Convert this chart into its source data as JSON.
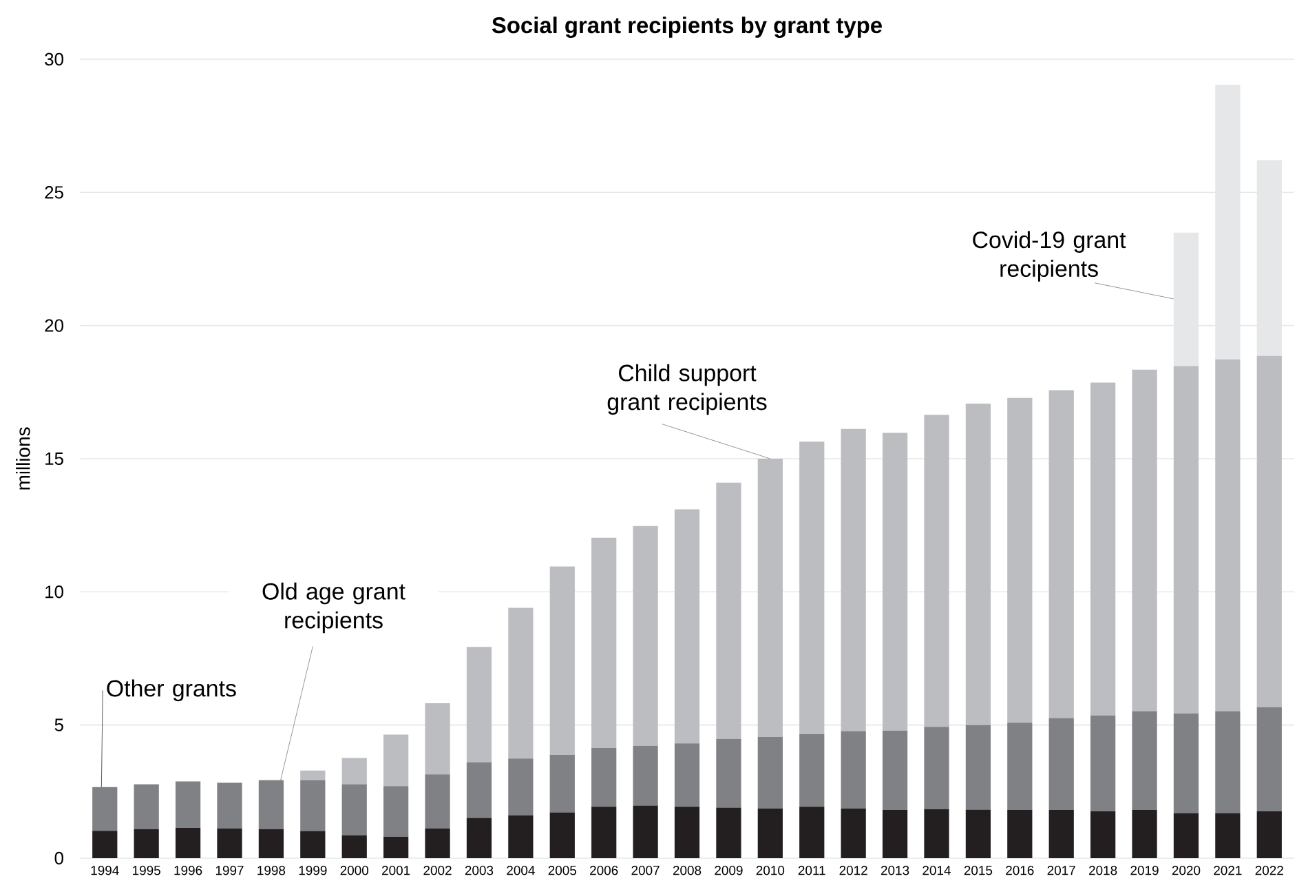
{
  "chart_data": {
    "type": "bar",
    "title": "Social grant recipients by grant type",
    "ylabel": "millions",
    "stacked": true,
    "grid": "y",
    "ylim": [
      0,
      30
    ],
    "yticks": [
      0,
      5,
      10,
      15,
      20,
      25,
      30
    ],
    "categories": [
      "1994",
      "1995",
      "1996",
      "1997",
      "1998",
      "1999",
      "2000",
      "2001",
      "2002",
      "2003",
      "2004",
      "2005",
      "2006",
      "2007",
      "2008",
      "2009",
      "2010",
      "2011",
      "2012",
      "2013",
      "2014",
      "2015",
      "2016",
      "2017",
      "2018",
      "2019",
      "2020",
      "2021",
      "2022"
    ],
    "series": [
      {
        "name": "Other grants",
        "color": "#231f20",
        "values": [
          1.03,
          1.09,
          1.14,
          1.11,
          1.09,
          1.02,
          0.86,
          0.81,
          1.12,
          1.51,
          1.6,
          1.72,
          1.93,
          1.98,
          1.93,
          1.9,
          1.86,
          1.93,
          1.86,
          1.81,
          1.84,
          1.82,
          1.81,
          1.81,
          1.76,
          1.81,
          1.69,
          1.69,
          1.76
        ]
      },
      {
        "name": "Old age grant recipients",
        "color": "#808185",
        "values": [
          1.64,
          1.68,
          1.74,
          1.72,
          1.84,
          1.91,
          1.91,
          1.9,
          2.03,
          2.09,
          2.14,
          2.16,
          2.21,
          2.24,
          2.38,
          2.58,
          2.69,
          2.73,
          2.91,
          2.98,
          3.09,
          3.18,
          3.28,
          3.45,
          3.6,
          3.71,
          3.74,
          3.83,
          3.91
        ]
      },
      {
        "name": "Child support grant recipients",
        "color": "#bcbdc1",
        "values": [
          0,
          0,
          0,
          0,
          0,
          0.36,
          0.99,
          1.93,
          2.67,
          4.33,
          5.66,
          7.07,
          7.89,
          8.25,
          8.79,
          9.62,
          10.45,
          10.98,
          11.35,
          11.18,
          11.72,
          12.07,
          12.19,
          12.31,
          12.5,
          12.82,
          13.05,
          13.21,
          13.19
        ]
      },
      {
        "name": "Covid-19 grant recipients",
        "color": "#e6e7e8",
        "values": [
          0,
          0,
          0,
          0,
          0,
          0,
          0,
          0,
          0,
          0,
          0,
          0,
          0,
          0,
          0,
          0,
          0,
          0,
          0,
          0,
          0,
          0,
          0,
          0,
          0,
          0,
          5.01,
          10.31,
          7.35
        ]
      }
    ]
  }
}
